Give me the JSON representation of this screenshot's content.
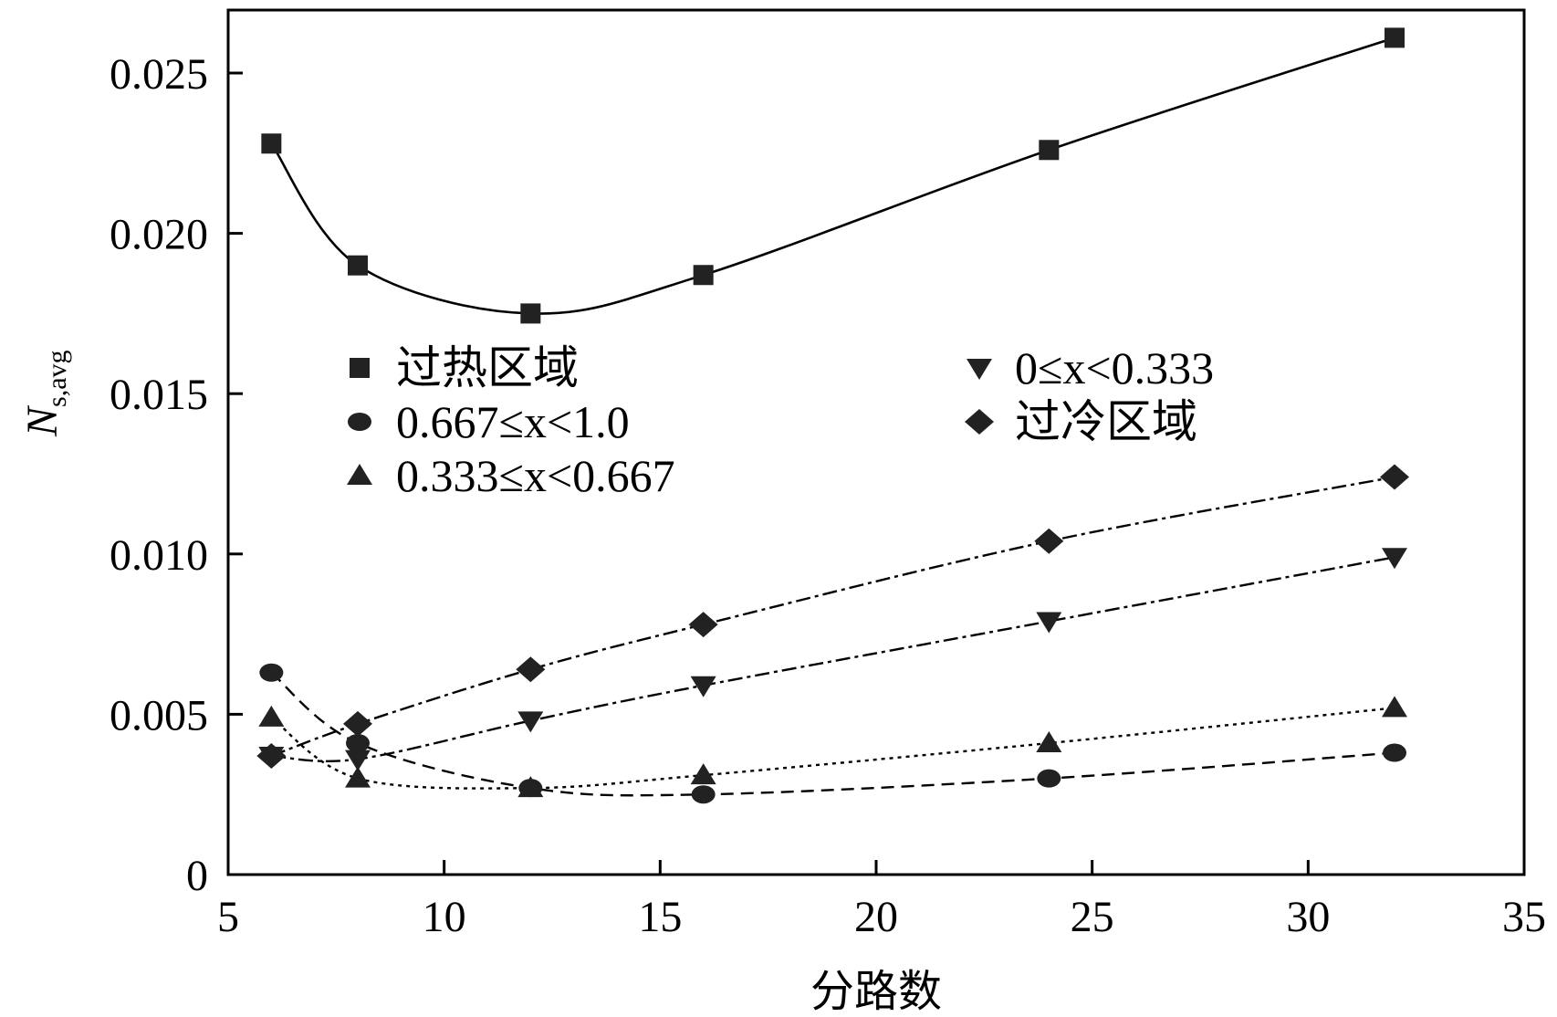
{
  "chart_data": {
    "type": "line",
    "title": "",
    "xlabel": "分路数",
    "ylabel_main": "N",
    "ylabel_sub": "s,avg",
    "xlim": [
      5,
      35
    ],
    "ylim": [
      0,
      0.027
    ],
    "xticks": [
      5,
      10,
      15,
      20,
      25,
      30,
      35
    ],
    "xtick_labels": [
      "5",
      "10",
      "15",
      "20",
      "25",
      "30",
      "35"
    ],
    "yticks": [
      0,
      0.005,
      0.01,
      0.015,
      0.02,
      0.025
    ],
    "ytick_labels": [
      "0",
      "0.005",
      "0.010",
      "0.015",
      "0.020",
      "0.025"
    ],
    "grid": false,
    "x": [
      6,
      8,
      12,
      16,
      24,
      32
    ],
    "series": [
      {
        "name": "过热区域",
        "marker": "square",
        "line": "solid",
        "values": [
          0.0228,
          0.019,
          0.0175,
          0.0187,
          0.0226,
          0.0261
        ]
      },
      {
        "name": "0.667≤x<1.0",
        "marker": "circle",
        "line": "dashed",
        "values": [
          0.0063,
          0.0041,
          0.0027,
          0.0025,
          0.003,
          0.0038
        ]
      },
      {
        "name": "0.333≤x<0.667",
        "marker": "triangle-up",
        "line": "dotted",
        "values": [
          0.0049,
          0.003,
          0.0027,
          0.0031,
          0.0041,
          0.0052
        ]
      },
      {
        "name": "0≤x<0.333",
        "marker": "triangle-down",
        "line": "dashdot",
        "values": [
          0.0037,
          0.0036,
          0.0048,
          0.0059,
          0.0079,
          0.0099
        ]
      },
      {
        "name": "过冷区域",
        "marker": "diamond",
        "line": "dashdot",
        "values": [
          0.0037,
          0.0047,
          0.0064,
          0.0078,
          0.0104,
          0.0124
        ]
      }
    ],
    "legend": {
      "placement": "center-left",
      "col1": [
        {
          "marker": "square",
          "label": "过热区域"
        },
        {
          "marker": "circle",
          "label": "0.667≤x<1.0"
        },
        {
          "marker": "triangle-up",
          "label": "0.333≤x<0.667"
        }
      ],
      "col2": [
        {
          "marker": "triangle-down",
          "label": "0≤x<0.333"
        },
        {
          "marker": "diamond",
          "label": "过冷区域"
        }
      ]
    }
  }
}
